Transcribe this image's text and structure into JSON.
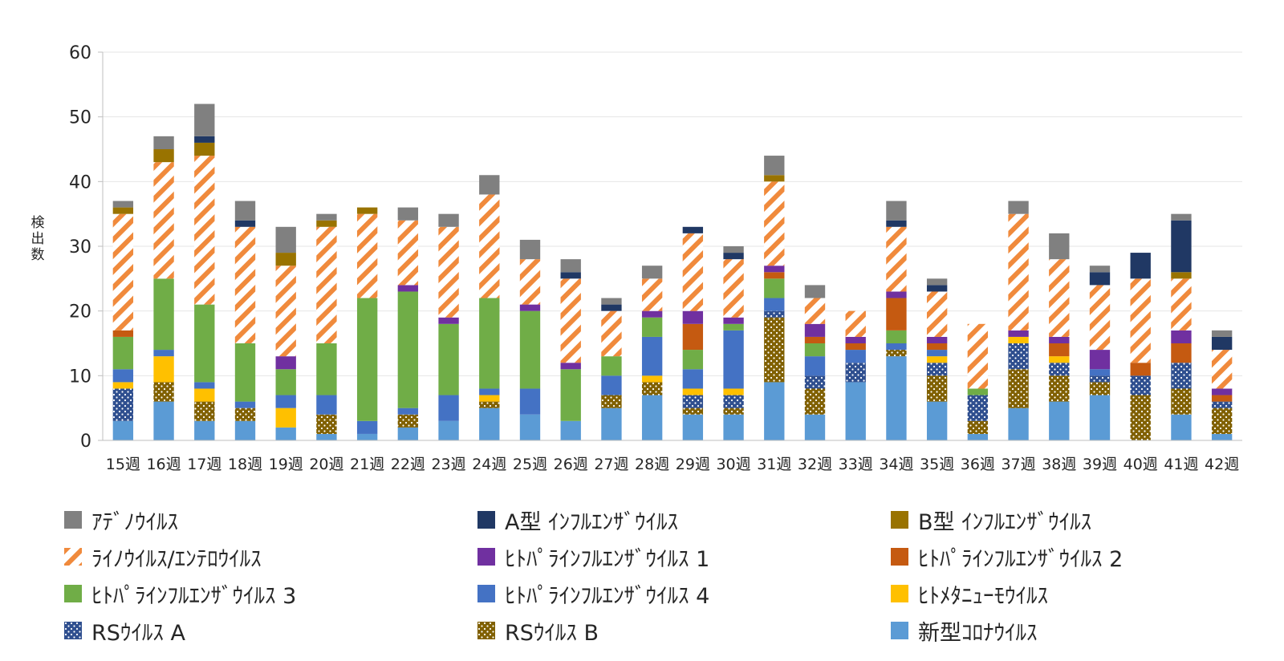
{
  "chart_data": {
    "type": "bar",
    "stacked": true,
    "title": "",
    "xlabel": "",
    "ylabel": "検出数",
    "ylim": [
      0,
      60
    ],
    "yticks": [
      0,
      10,
      20,
      30,
      40,
      50,
      60
    ],
    "grid": true,
    "legend_position": "bottom",
    "categories": [
      "15週",
      "16週",
      "17週",
      "18週",
      "19週",
      "20週",
      "21週",
      "22週",
      "23週",
      "24週",
      "25週",
      "26週",
      "27週",
      "28週",
      "29週",
      "30週",
      "31週",
      "32週",
      "33週",
      "34週",
      "35週",
      "36週",
      "37週",
      "38週",
      "39週",
      "40週",
      "41週",
      "42週"
    ],
    "series": [
      {
        "name": "新型ｺﾛﾅｳｲﾙｽ",
        "color": "#5b9bd5",
        "pattern": "solid",
        "values": [
          3,
          6,
          3,
          3,
          2,
          1,
          1,
          2,
          3,
          5,
          4,
          3,
          5,
          7,
          4,
          4,
          9,
          4,
          9,
          13,
          6,
          1,
          5,
          6,
          7,
          0,
          4,
          1
        ]
      },
      {
        "name": "RSｳｲﾙｽ B",
        "color": "#806000",
        "pattern": "dots-light",
        "values": [
          0,
          3,
          3,
          2,
          0,
          3,
          0,
          2,
          0,
          1,
          0,
          0,
          2,
          2,
          1,
          1,
          10,
          4,
          0,
          1,
          4,
          2,
          6,
          4,
          2,
          7,
          4,
          4
        ]
      },
      {
        "name": "RSｳｲﾙｽ A",
        "color": "#2f4f8f",
        "pattern": "dots-light",
        "values": [
          5,
          0,
          0,
          0,
          0,
          0,
          0,
          0,
          0,
          0,
          0,
          0,
          0,
          0,
          2,
          2,
          1,
          2,
          3,
          0,
          2,
          4,
          4,
          2,
          1,
          3,
          4,
          1
        ]
      },
      {
        "name": "ﾋﾄﾒﾀﾆｭｰﾓｳｲﾙｽ",
        "color": "#ffc000",
        "pattern": "solid",
        "values": [
          1,
          4,
          2,
          0,
          3,
          0,
          0,
          0,
          0,
          1,
          0,
          0,
          0,
          1,
          1,
          1,
          0,
          0,
          0,
          0,
          1,
          0,
          1,
          1,
          0,
          0,
          0,
          0
        ]
      },
      {
        "name": "ﾋﾄﾊﾟﾗｲﾝﾌﾙｴﾝｻﾞｳｲﾙｽ 4",
        "color": "#4472c4",
        "pattern": "solid",
        "values": [
          2,
          1,
          1,
          1,
          2,
          3,
          2,
          1,
          4,
          1,
          4,
          0,
          3,
          6,
          3,
          9,
          2,
          3,
          2,
          1,
          1,
          0,
          0,
          0,
          1,
          0,
          0,
          0
        ]
      },
      {
        "name": "ﾋﾄﾊﾟﾗｲﾝﾌﾙｴﾝｻﾞｳｲﾙｽ 3",
        "color": "#70ad47",
        "pattern": "solid",
        "values": [
          5,
          11,
          12,
          9,
          4,
          8,
          19,
          18,
          11,
          14,
          12,
          8,
          3,
          3,
          3,
          1,
          3,
          2,
          0,
          2,
          0,
          1,
          0,
          0,
          0,
          0,
          0,
          0
        ]
      },
      {
        "name": "ﾋﾄﾊﾟﾗｲﾝﾌﾙｴﾝｻﾞｳｲﾙｽ 2",
        "color": "#c55a11",
        "pattern": "solid",
        "values": [
          1,
          0,
          0,
          0,
          0,
          0,
          0,
          0,
          0,
          0,
          0,
          0,
          0,
          0,
          4,
          0,
          1,
          1,
          1,
          5,
          1,
          0,
          0,
          2,
          0,
          2,
          3,
          1
        ]
      },
      {
        "name": "ﾋﾄﾊﾟﾗｲﾝﾌﾙｴﾝｻﾞｳｲﾙｽ 1",
        "color": "#7030a0",
        "pattern": "solid",
        "values": [
          0,
          0,
          0,
          0,
          2,
          0,
          0,
          1,
          1,
          0,
          1,
          1,
          0,
          1,
          2,
          1,
          1,
          2,
          1,
          1,
          1,
          0,
          1,
          1,
          3,
          0,
          2,
          1
        ]
      },
      {
        "name": "ﾗｲﾉｳｲﾙｽ/ｴﾝﾃﾛｳｲﾙｽ",
        "color": "#f4b183",
        "pattern": "hatch",
        "values": [
          18,
          18,
          23,
          18,
          14,
          18,
          13,
          10,
          14,
          16,
          7,
          13,
          7,
          5,
          12,
          9,
          13,
          4,
          4,
          10,
          7,
          10,
          18,
          12,
          10,
          13,
          8,
          6
        ]
      },
      {
        "name": "B型 ｲﾝﾌﾙｴﾝｻﾞｳｲﾙｽ",
        "color": "#997300",
        "pattern": "solid",
        "values": [
          1,
          2,
          2,
          0,
          2,
          1,
          1,
          0,
          0,
          0,
          0,
          0,
          0,
          0,
          0,
          0,
          1,
          0,
          0,
          0,
          0,
          0,
          0,
          0,
          0,
          0,
          1,
          0
        ]
      },
      {
        "name": "A型 ｲﾝﾌﾙｴﾝｻﾞｳｲﾙｽ",
        "color": "#203864",
        "pattern": "solid",
        "values": [
          0,
          0,
          1,
          1,
          0,
          0,
          0,
          0,
          0,
          0,
          0,
          1,
          1,
          0,
          1,
          1,
          0,
          0,
          0,
          1,
          1,
          0,
          0,
          0,
          2,
          4,
          8,
          2
        ]
      },
      {
        "name": "ｱﾃﾞﾉｳｲﾙｽ",
        "color": "#808080",
        "pattern": "solid",
        "values": [
          1,
          2,
          5,
          3,
          4,
          1,
          0,
          2,
          2,
          3,
          3,
          2,
          1,
          2,
          0,
          1,
          3,
          2,
          0,
          3,
          1,
          0,
          2,
          4,
          1,
          0,
          1,
          1
        ]
      }
    ],
    "legend_order": [
      "ｱﾃﾞﾉｳｲﾙｽ",
      "A型 ｲﾝﾌﾙｴﾝｻﾞｳｲﾙｽ",
      "B型 ｲﾝﾌﾙｴﾝｻﾞｳｲﾙｽ",
      "ﾗｲﾉｳｲﾙｽ/ｴﾝﾃﾛｳｲﾙｽ",
      "ﾋﾄﾊﾟﾗｲﾝﾌﾙｴﾝｻﾞｳｲﾙｽ 1",
      "ﾋﾄﾊﾟﾗｲﾝﾌﾙｴﾝｻﾞｳｲﾙｽ 2",
      "ﾋﾄﾊﾟﾗｲﾝﾌﾙｴﾝｻﾞｳｲﾙｽ 3",
      "ﾋﾄﾊﾟﾗｲﾝﾌﾙｴﾝｻﾞｳｲﾙｽ 4",
      "ﾋﾄﾒﾀﾆｭｰﾓｳｲﾙｽ",
      "RSｳｲﾙｽ A",
      "RSｳｲﾙｽ B",
      "新型ｺﾛﾅｳｲﾙｽ"
    ]
  }
}
